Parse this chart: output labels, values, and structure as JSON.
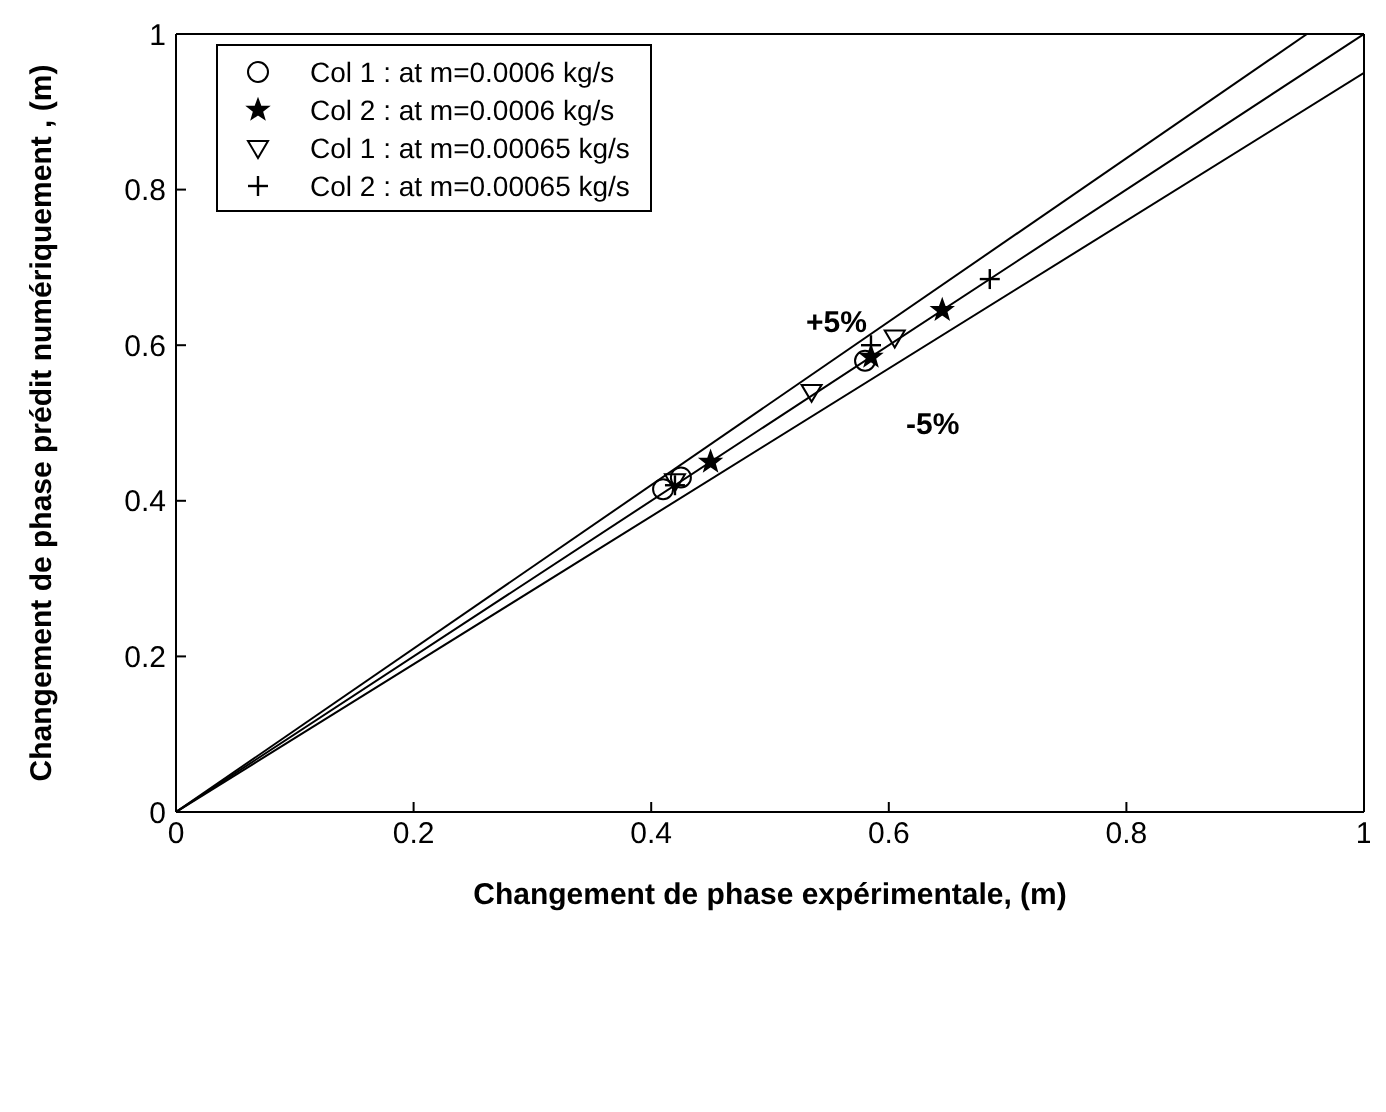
{
  "chart_data": {
    "type": "scatter",
    "xlabel": "Changement de phase expérimentale, (m)",
    "ylabel": "Changement de phase prédit  numériquement , (m)",
    "xlim": [
      0,
      1
    ],
    "ylim": [
      0,
      1
    ],
    "xticks": [
      0,
      0.2,
      0.4,
      0.6,
      0.8,
      1
    ],
    "yticks": [
      0,
      0.2,
      0.4,
      0.6,
      0.8,
      1
    ],
    "grid": false,
    "legend": "top left",
    "annotations": [
      "+5%",
      "-5%"
    ],
    "series": [
      {
        "name": "Col 1 : at m=0.0006 kg/s",
        "color": "#000000",
        "marker": "circle",
        "x": [
          0.41,
          0.425,
          0.58
        ],
        "values": [
          0.415,
          0.43,
          0.58
        ]
      },
      {
        "name": "Col 2 : at m=0.0006 kg/s",
        "color": "#000000",
        "marker": "star",
        "x": [
          0.45,
          0.585,
          0.645
        ],
        "values": [
          0.45,
          0.585,
          0.645
        ]
      },
      {
        "name": "Col 1 : at m=0.00065 kg/s",
        "color": "#000000",
        "marker": "triangle",
        "x": [
          0.42,
          0.535,
          0.605
        ],
        "values": [
          0.425,
          0.54,
          0.61
        ]
      },
      {
        "name": "Col 2 : at m=0.00065 kg/s",
        "color": "#000000",
        "marker": "cross",
        "x": [
          0.42,
          0.585,
          0.685
        ],
        "values": [
          0.42,
          0.6,
          0.685
        ]
      },
      {
        "type": "line",
        "color": "#000000",
        "marker": "none",
        "x": [
          0,
          1
        ],
        "values": [
          0,
          1
        ]
      },
      {
        "type": "line",
        "color": "#000000",
        "marker": "none",
        "x": [
          0,
          0.952
        ],
        "values": [
          0,
          1
        ]
      },
      {
        "type": "line",
        "color": "#000000",
        "marker": "none",
        "x": [
          0,
          1
        ],
        "values": [
          0,
          0.95
        ]
      }
    ]
  }
}
